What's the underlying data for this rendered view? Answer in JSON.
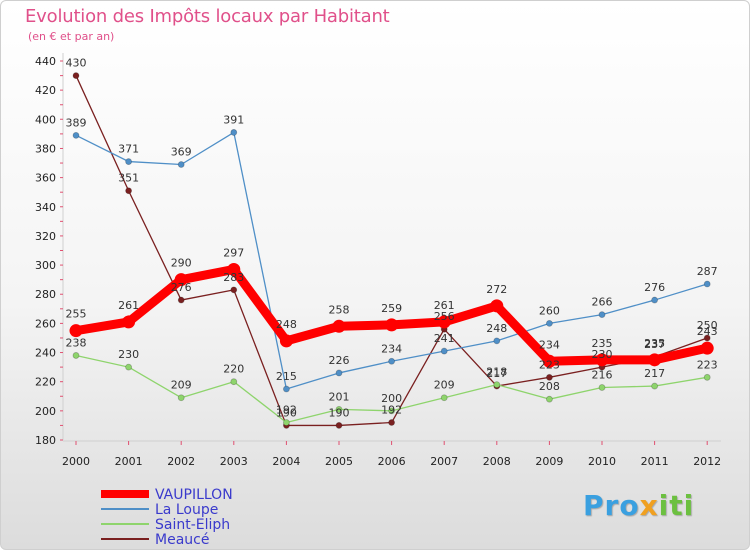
{
  "chart_data": {
    "type": "line",
    "title": "Evolution des Impôts locaux par Habitant",
    "subtitle": "(en € et par an)",
    "xlabel": "",
    "ylabel": "",
    "ylim": [
      180,
      440
    ],
    "y_ticks": [
      180,
      200,
      220,
      240,
      260,
      280,
      300,
      320,
      340,
      360,
      380,
      400,
      420,
      440
    ],
    "categories": [
      "2000",
      "2001",
      "2002",
      "2003",
      "2004",
      "2005",
      "2006",
      "2007",
      "2008",
      "2009",
      "2010",
      "2011",
      "2012"
    ],
    "series": [
      {
        "name": "VAUPILLON",
        "color": "#ff0000",
        "values": [
          255,
          261,
          290,
          297,
          248,
          258,
          259,
          261,
          272,
          234,
          235,
          235,
          243
        ]
      },
      {
        "name": "La Loupe",
        "color": "#4f8fc7",
        "values": [
          389,
          371,
          369,
          391,
          215,
          226,
          234,
          241,
          248,
          260,
          266,
          276,
          287
        ]
      },
      {
        "name": "Saint-Eliph",
        "color": "#8ed46c",
        "values": [
          238,
          230,
          209,
          220,
          192,
          201,
          200,
          209,
          218,
          208,
          216,
          217,
          223
        ]
      },
      {
        "name": "Meaucé",
        "color": "#7a2020",
        "values": [
          430,
          351,
          276,
          283,
          190,
          190,
          192,
          256,
          217,
          223,
          230,
          237,
          250
        ]
      }
    ],
    "data_labels": [
      {
        "series": "VAUPILLON",
        "labels": [
          "255",
          "261",
          "290",
          "297",
          "248",
          "258",
          "259",
          "261",
          "272",
          "234",
          "235",
          "235",
          "243"
        ]
      },
      {
        "series": "La Loupe",
        "labels": [
          "389",
          "371",
          "369",
          "391",
          "215",
          "226",
          "234",
          "241",
          "248",
          "260",
          "266",
          "276",
          "287"
        ]
      },
      {
        "series": "Saint-Eliph",
        "labels": [
          "238",
          "230",
          "209",
          "220",
          "192",
          "201",
          "200",
          "209",
          "218",
          "208",
          "216",
          "217",
          "223"
        ]
      },
      {
        "series": "Meaucé",
        "labels": [
          "430",
          "351",
          "276",
          "283",
          "190",
          "190",
          "192",
          "256",
          "217",
          "223",
          "230",
          "237",
          "250"
        ]
      }
    ],
    "legend": [
      "VAUPILLON",
      "La Loupe",
      "Saint-Eliph",
      "Meaucé"
    ],
    "legend_position": "bottom-left",
    "grid": false
  },
  "brand": {
    "part1": "Pro",
    "part2": "x",
    "part3": "iti"
  }
}
